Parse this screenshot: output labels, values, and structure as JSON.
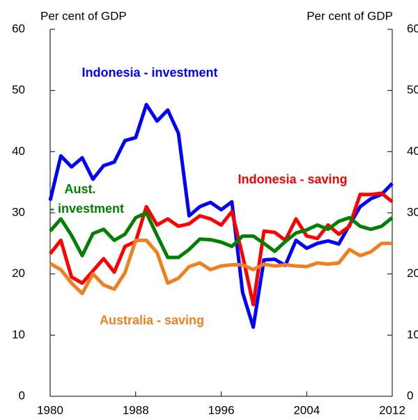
{
  "chart_data": {
    "type": "line",
    "y_label": "Per cent of GDP",
    "y2_label": "Per cent of GDP",
    "x": [
      1980,
      1981,
      1982,
      1983,
      1984,
      1985,
      1986,
      1987,
      1988,
      1989,
      1990,
      1991,
      1992,
      1993,
      1994,
      1995,
      1996,
      1997,
      1998,
      1999,
      2000,
      2001,
      2002,
      2003,
      2004,
      2005,
      2006,
      2007,
      2008,
      2009,
      2010,
      2011,
      2012
    ],
    "series": [
      {
        "color": "#0000ff",
        "values": [
          32,
          39.3,
          37.5,
          39,
          35.5,
          37.7,
          38.3,
          41.8,
          42.3,
          47.7,
          45,
          46.8,
          43,
          29.5,
          31,
          31.7,
          30.5,
          31.8,
          17,
          11.3,
          22.3,
          22.4,
          21.4,
          25.5,
          24.2,
          25,
          25.4,
          24.9,
          28,
          31,
          32.3,
          33,
          34.8
        ]
      },
      {
        "color": "#ff0000",
        "values": [
          23.3,
          25.5,
          19.5,
          18.5,
          20.5,
          22.5,
          20.3,
          24.5,
          25.3,
          31,
          28,
          29,
          27.8,
          28.2,
          29.5,
          29,
          28,
          30.2,
          23,
          15,
          27,
          26.8,
          25.5,
          29,
          26.2,
          25.8,
          28,
          26.5,
          27.8,
          33,
          33,
          33.2,
          31.8
        ]
      },
      {
        "color": "#008000",
        "values": [
          27,
          29,
          26.3,
          23,
          26.6,
          27.3,
          25.5,
          26.5,
          29.2,
          30,
          26.3,
          22.7,
          22.7,
          24,
          25.7,
          25.6,
          25.2,
          24.5,
          26.2,
          26.2,
          25,
          23.7,
          25.3,
          26.7,
          27.2,
          28,
          27.3,
          28.6,
          29.2,
          27.8,
          27.3,
          27.8,
          29.2
        ]
      },
      {
        "color": "#f07f1e",
        "values": [
          21.7,
          20.7,
          18.5,
          16.8,
          20,
          18.2,
          17.5,
          20.2,
          25.5,
          25.5,
          23.5,
          18.5,
          19.3,
          21.2,
          21.8,
          20.7,
          21.3,
          21.5,
          21.5,
          20.7,
          21.6,
          21.3,
          21.5,
          21.3,
          21.2,
          21.8,
          21.6,
          21.8,
          24,
          23,
          23.6,
          25,
          25
        ]
      }
    ],
    "annotations": [
      {
        "text": "Indonesia - investment",
        "color": "#0000ff"
      },
      {
        "text": "Indonesia - saving",
        "color": "#ff0000"
      },
      {
        "text": "Aust.",
        "color": "#008000"
      },
      {
        "text": "- investment",
        "color": "#008000"
      },
      {
        "text": "Australia - saving",
        "color": "#f07f1e"
      }
    ],
    "xlim": [
      1980,
      2012
    ],
    "xticks": [
      1980,
      1988,
      1996,
      2004,
      2012
    ],
    "ylim": [
      0,
      60
    ],
    "yticks": [
      0,
      10,
      20,
      30,
      40,
      50,
      60
    ],
    "y2lim": [
      0,
      60
    ],
    "y2ticks": [
      0,
      10,
      20,
      30,
      40,
      50,
      60
    ]
  }
}
